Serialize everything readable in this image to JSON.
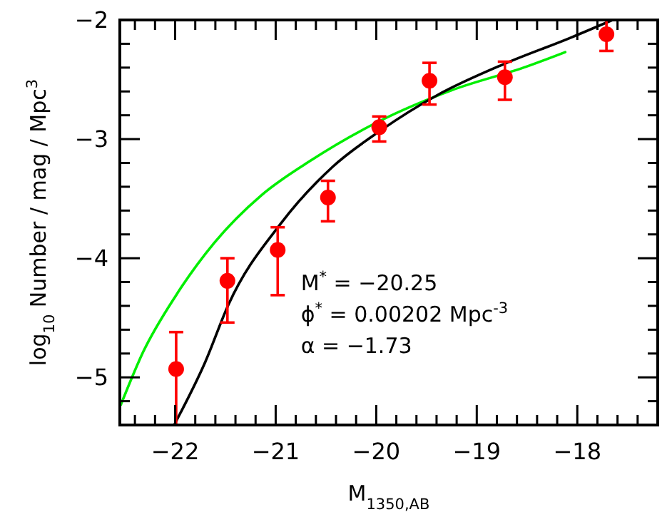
{
  "chart_data": {
    "type": "scatter",
    "xlabel": "M$_{1350,AB}$",
    "ylabel": "log$_{10}$ Number / mag / Mpc$^{3}$",
    "xlim": [
      -22.55,
      -17.2
    ],
    "ylim": [
      -5.4,
      -2
    ],
    "xticks": [
      {
        "value": -22.4,
        "label": null
      },
      {
        "value": -22.2,
        "label": null
      },
      {
        "value": -22,
        "label": "−22"
      },
      {
        "value": -21.8,
        "label": null
      },
      {
        "value": -21.6,
        "label": null
      },
      {
        "value": -21.4,
        "label": null
      },
      {
        "value": -21.2,
        "label": null
      },
      {
        "value": -21,
        "label": "−21"
      },
      {
        "value": -20.8,
        "label": null
      },
      {
        "value": -20.6,
        "label": null
      },
      {
        "value": -20.4,
        "label": null
      },
      {
        "value": -20.2,
        "label": null
      },
      {
        "value": -20,
        "label": "−20"
      },
      {
        "value": -19.8,
        "label": null
      },
      {
        "value": -19.6,
        "label": null
      },
      {
        "value": -19.4,
        "label": null
      },
      {
        "value": -19.2,
        "label": null
      },
      {
        "value": -19,
        "label": "−19"
      },
      {
        "value": -18.8,
        "label": null
      },
      {
        "value": -18.6,
        "label": null
      },
      {
        "value": -18.4,
        "label": null
      },
      {
        "value": -18.2,
        "label": null
      },
      {
        "value": -18,
        "label": "−18"
      },
      {
        "value": -17.8,
        "label": null
      },
      {
        "value": -17.6,
        "label": null
      },
      {
        "value": -17.4,
        "label": null
      }
    ],
    "yticks": [
      {
        "value": -5.2,
        "label": null
      },
      {
        "value": -5,
        "label": "−5"
      },
      {
        "value": -4.8,
        "label": null
      },
      {
        "value": -4.6,
        "label": null
      },
      {
        "value": -4.4,
        "label": null
      },
      {
        "value": -4.2,
        "label": null
      },
      {
        "value": -4,
        "label": "−4"
      },
      {
        "value": -3.8,
        "label": null
      },
      {
        "value": -3.6,
        "label": null
      },
      {
        "value": -3.4,
        "label": null
      },
      {
        "value": -3.2,
        "label": null
      },
      {
        "value": -3,
        "label": "−3"
      },
      {
        "value": -2.8,
        "label": null
      },
      {
        "value": -2.6,
        "label": null
      },
      {
        "value": -2.4,
        "label": null
      },
      {
        "value": -2.2,
        "label": null
      },
      {
        "value": -2,
        "label": "−2"
      }
    ],
    "grid": false,
    "series": [
      {
        "type": "line",
        "marker": "none",
        "color": "#00ee00",
        "x": [
          -22.54,
          -22.32,
          -21.99,
          -21.61,
          -21.14,
          -20.67,
          -19.97,
          -19.25,
          -18.5,
          -18.12
        ],
        "values": [
          -5.23,
          -4.79,
          -4.31,
          -3.87,
          -3.47,
          -3.19,
          -2.85,
          -2.59,
          -2.39,
          -2.27
        ]
      },
      {
        "type": "line",
        "marker": "none",
        "color": "#000000",
        "x": [
          -22.01,
          -21.7,
          -21.47,
          -20.95,
          -20.43,
          -19.96,
          -19.39,
          -18.73,
          -18.07,
          -17.65
        ],
        "values": [
          -5.4,
          -4.87,
          -4.39,
          -3.71,
          -3.23,
          -2.93,
          -2.63,
          -2.37,
          -2.15,
          -2.0
        ]
      },
      {
        "marker": "circle",
        "color": "#ff0000",
        "x": [
          -21.99,
          -21.48,
          -20.98,
          -20.48,
          -19.97,
          -19.47,
          -18.72,
          -17.71
        ],
        "values": [
          -4.93,
          -4.19,
          -3.93,
          -3.49,
          -2.9,
          -2.51,
          -2.48,
          -2.12
        ],
        "errors": [
          [
            -5.4,
            -4.62
          ],
          [
            -4.54,
            -4.0
          ],
          [
            -4.31,
            -3.74
          ],
          [
            -3.69,
            -3.35
          ],
          [
            -3.02,
            -2.81
          ],
          [
            -2.71,
            -2.36
          ],
          [
            -2.67,
            -2.35
          ],
          [
            -2.26,
            -2.0
          ]
        ]
      }
    ],
    "annotations": [
      "M$^{*}$ = −20.25",
      "ϕ$^{*}$ = 0.00202 Mpc$^{-3}$",
      "α = −1.73"
    ]
  }
}
